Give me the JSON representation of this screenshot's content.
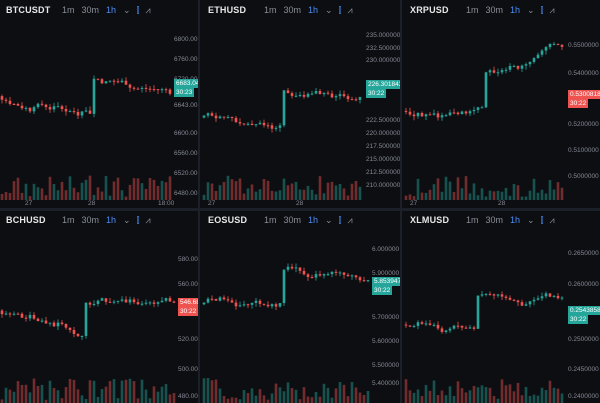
{
  "toolbar": {
    "timeframes": [
      "1m",
      "30m",
      "1h"
    ],
    "active_timeframe": "1h"
  },
  "colors": {
    "up": "#26a69a",
    "down": "#ef5350",
    "background": "#0c0e12"
  },
  "panels": [
    {
      "symbol": "BTCUSDT",
      "price_ticks": [
        "6800.00",
        "6760.00",
        "6720.00",
        "6683.04",
        "6643.00",
        "6600.00",
        "6560.00",
        "6520.00",
        "6480.00",
        "6440.00"
      ],
      "last_price": "6683.04",
      "countdown": "30:23",
      "last_color": "up",
      "time_ticks": [
        "27",
        "28",
        "18:00"
      ]
    },
    {
      "symbol": "ETHUSD",
      "price_ticks": [
        "235.000000",
        "232.500000",
        "230.000000",
        "227.500000",
        "225.000000",
        "222.500000",
        "220.000000",
        "217.500000",
        "215.000000",
        "212.500000",
        "210.000000"
      ],
      "last_price": "226.301843",
      "countdown": "30:22",
      "last_color": "up",
      "time_ticks": [
        "27",
        "28"
      ]
    },
    {
      "symbol": "XRPUSD",
      "price_ticks": [
        "0.5500000",
        "0.5400000",
        "0.5300818",
        "0.5200000",
        "0.5100000",
        "0.5000000"
      ],
      "last_price": "0.5300818",
      "countdown": "30:22",
      "last_color": "down",
      "time_ticks": [
        "27",
        "28"
      ]
    },
    {
      "symbol": "BCHUSD",
      "price_ticks": [
        "580.00",
        "560.00",
        "546.68",
        "520.00",
        "500.00",
        "480.00"
      ],
      "last_price": "546.68",
      "countdown": "30:22",
      "last_color": "down",
      "time_ticks": []
    },
    {
      "symbol": "EOSUSD",
      "price_ticks": [
        "6.000000",
        "5.900000",
        "5.853947",
        "5.700000",
        "5.600000",
        "5.500000",
        "5.400000"
      ],
      "last_price": "5.853947",
      "countdown": "30:22",
      "last_color": "up",
      "time_ticks": []
    },
    {
      "symbol": "XLMUSD",
      "price_ticks": [
        "0.2650000",
        "0.2600000",
        "0.2543858",
        "0.2500000",
        "0.2450000",
        "0.2400000"
      ],
      "last_price": "0.2543858",
      "countdown": "30:22",
      "last_color": "up",
      "time_ticks": []
    }
  ]
}
